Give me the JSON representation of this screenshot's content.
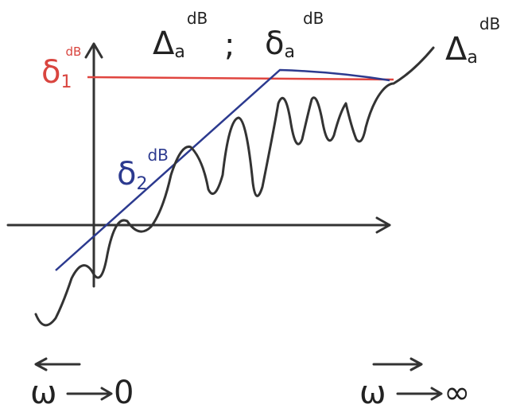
{
  "labels": {
    "top_left": {
      "symbol": "Δ",
      "sub": "a",
      "sup": "dB"
    },
    "separator": ";",
    "top_middle": {
      "symbol": "δ",
      "sub": "a",
      "sup": "dB"
    },
    "right": {
      "symbol": "Δ",
      "sub": "a",
      "sup": "dB"
    },
    "red_level": {
      "symbol": "δ",
      "sub": "1",
      "sup": "dB"
    },
    "blue_slope": {
      "symbol": "δ",
      "sub": "2",
      "sup": "dB"
    }
  },
  "bottom": {
    "left": {
      "variable": "ω",
      "limit": "0"
    },
    "right": {
      "variable": "ω",
      "limit": "∞"
    }
  }
}
